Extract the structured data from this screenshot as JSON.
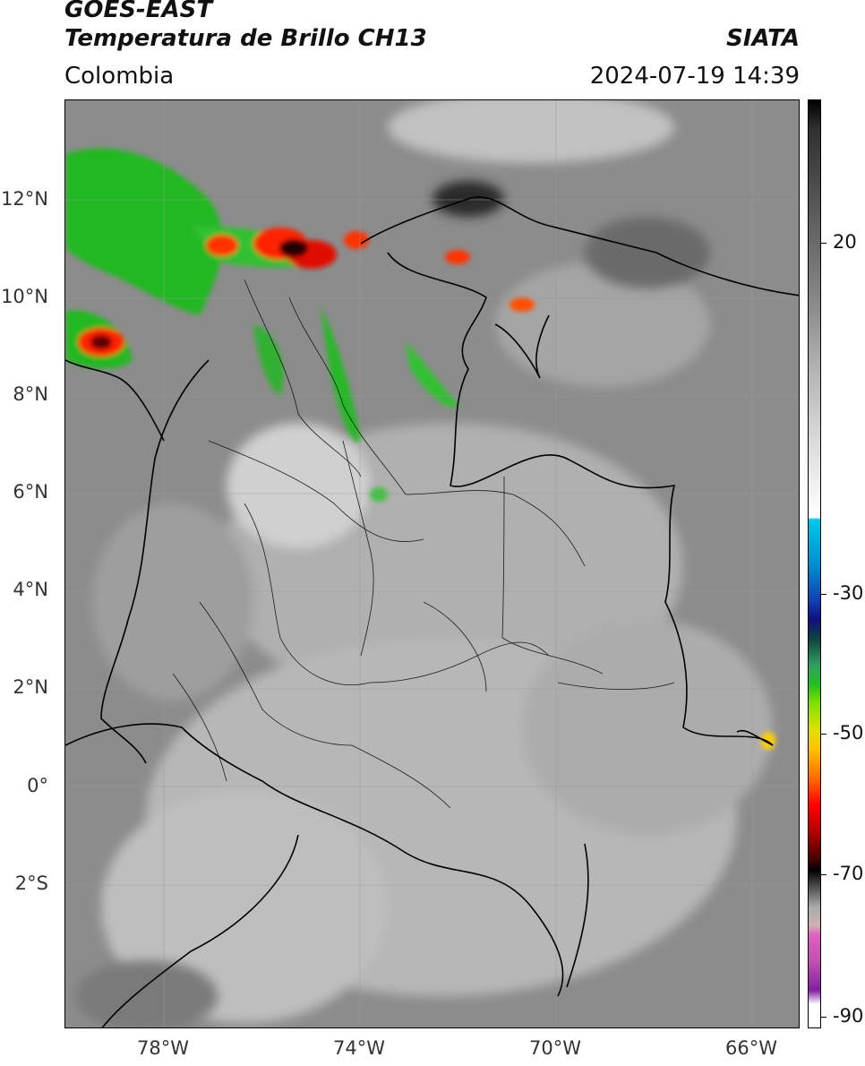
{
  "header": {
    "satellite": "GOES-EAST",
    "product": "Temperatura de Brillo CH13",
    "region": "Colombia",
    "source": "SIATA",
    "datetime": "2024-07-19 14:39"
  },
  "axes": {
    "lat_labels": [
      "12°N",
      "10°N",
      "8°N",
      "6°N",
      "4°N",
      "2°N",
      "0°",
      "2°S"
    ],
    "lon_labels": [
      "78°W",
      "74°W",
      "70°W",
      "66°W"
    ]
  },
  "colorbar": {
    "labels": [
      "20",
      "-30",
      "-50",
      "-70",
      "-90"
    ]
  },
  "colors": {
    "background_gray": "#8c8c8c",
    "cold_cloud_green": "#20c020",
    "deep_convection_red": "#ff0000",
    "border_line": "#000000"
  }
}
